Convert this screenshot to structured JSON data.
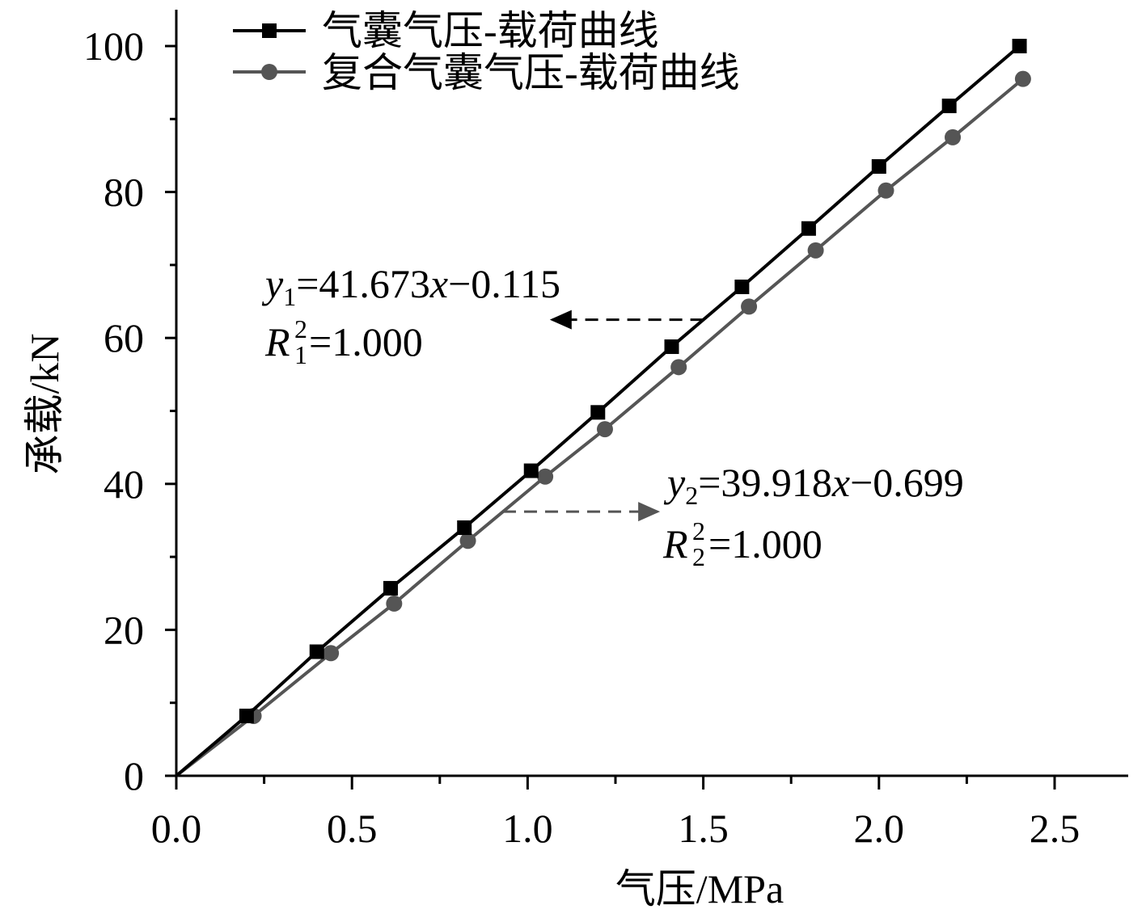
{
  "chart_data": {
    "type": "line",
    "title": "",
    "xlabel": "气压/MPa",
    "ylabel": "承载/kN",
    "xlim": [
      0,
      2.7
    ],
    "ylim": [
      0,
      100
    ],
    "x_ticks": [
      0.0,
      0.5,
      1.0,
      1.5,
      2.0,
      2.5
    ],
    "x_tick_labels": [
      "0.0",
      "0.5",
      "1.0",
      "1.5",
      "2.0",
      "2.5"
    ],
    "y_ticks": [
      0,
      20,
      40,
      60,
      80,
      100
    ],
    "y_tick_labels": [
      "0",
      "20",
      "40",
      "60",
      "80",
      "100"
    ],
    "grid": false,
    "legend_position": "top-left",
    "series": [
      {
        "name": "气囊气压-载荷曲线",
        "marker": "square",
        "color": "#000000",
        "x": [
          0,
          0.2,
          0.4,
          0.61,
          0.82,
          1.01,
          1.2,
          1.41,
          1.61,
          1.8,
          2.0,
          2.2,
          2.4
        ],
        "y": [
          0,
          8.2,
          17.0,
          25.7,
          34.0,
          41.8,
          49.8,
          58.8,
          67.0,
          75.0,
          83.5,
          91.8,
          100.0
        ]
      },
      {
        "name": "复合气囊气压-载荷曲线",
        "marker": "circle",
        "color": "#555555",
        "x": [
          0,
          0.22,
          0.44,
          0.62,
          0.83,
          1.05,
          1.22,
          1.43,
          1.63,
          1.82,
          2.02,
          2.21,
          2.41
        ],
        "y": [
          0,
          8.2,
          16.8,
          23.6,
          32.2,
          41.0,
          47.5,
          56.0,
          64.3,
          72.0,
          80.2,
          87.5,
          95.5
        ]
      }
    ],
    "annotations": [
      {
        "var": "y",
        "index": "1",
        "rhs": "=41.673",
        "x_var": "x",
        "tail": "−0.115",
        "r_var": "R",
        "r_index": "1",
        "r_power": "2",
        "r_value": "=1.000",
        "arrow_from": [
          1.5,
          62.5
        ],
        "arrow_to": [
          1.07,
          62.5
        ]
      },
      {
        "var": "y",
        "index": "2",
        "rhs": "=39.918",
        "x_var": "x",
        "tail": "−0.699",
        "r_var": "R",
        "r_index": "2",
        "r_power": "2",
        "r_value": "=1.000",
        "arrow_from": [
          0.93,
          36.2
        ],
        "arrow_to": [
          1.37,
          36.2
        ]
      }
    ]
  }
}
